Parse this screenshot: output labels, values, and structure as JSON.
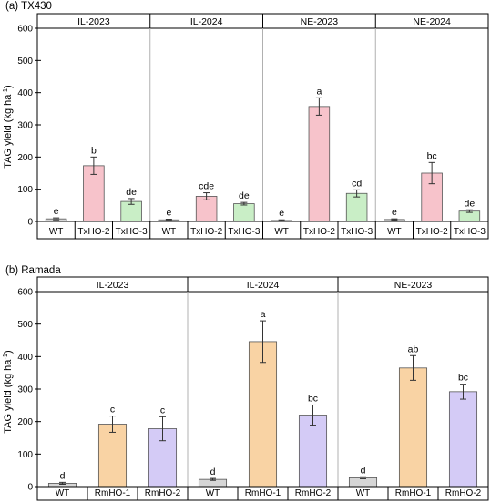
{
  "colors": {
    "WT": "#d6d6d6",
    "TxHO-2": "#f7c3cb",
    "TxHO-3": "#c9eec6",
    "RmHO-1": "#f9d3a4",
    "RmHO-2": "#d4cbf6",
    "axis": "#000000",
    "frame": "#b0b0b0"
  },
  "chart_data": [
    {
      "type": "bar",
      "title": "(a) TX430",
      "ylabel": "TAG yield (kg ha",
      "ylabel_sup": "-1",
      "ylabel_close": ")",
      "ylim": [
        0,
        600
      ],
      "yticks": [
        "0",
        "100",
        "200",
        "300",
        "400",
        "500",
        "600"
      ],
      "grid": false,
      "groups": [
        {
          "name": "IL-2023",
          "categories": [
            "WT",
            "TxHO-2",
            "TxHO-3"
          ],
          "values": [
            8,
            173,
            62
          ],
          "errors": [
            3,
            27,
            9
          ],
          "letters": [
            "e",
            "b",
            "de"
          ]
        },
        {
          "name": "IL-2024",
          "categories": [
            "WT",
            "TxHO-2",
            "TxHO-3"
          ],
          "values": [
            5,
            78,
            55
          ],
          "errors": [
            2,
            11,
            4
          ],
          "letters": [
            "e",
            "cde",
            "de"
          ]
        },
        {
          "name": "NE-2023",
          "categories": [
            "WT",
            "TxHO-2",
            "TxHO-3"
          ],
          "values": [
            3,
            357,
            87
          ],
          "errors": [
            2,
            27,
            11
          ],
          "letters": [
            "e",
            "a",
            "cd"
          ]
        },
        {
          "name": "NE-2024",
          "categories": [
            "WT",
            "TxHO-2",
            "TxHO-3"
          ],
          "values": [
            6,
            150,
            32
          ],
          "errors": [
            2,
            33,
            4
          ],
          "letters": [
            "e",
            "bc",
            "de"
          ]
        }
      ]
    },
    {
      "type": "bar",
      "title": "(b) Ramada",
      "ylabel": "TAG yield (kg ha",
      "ylabel_sup": "-1",
      "ylabel_close": ")",
      "ylim": [
        0,
        600
      ],
      "yticks": [
        "0",
        "100",
        "200",
        "300",
        "400",
        "500",
        "600"
      ],
      "grid": false,
      "groups": [
        {
          "name": "IL-2023",
          "categories": [
            "WT",
            "RmHO-1",
            "RmHO-2"
          ],
          "values": [
            10,
            192,
            178
          ],
          "errors": [
            3,
            25,
            37
          ],
          "letters": [
            "d",
            "c",
            "c"
          ]
        },
        {
          "name": "IL-2024",
          "categories": [
            "WT",
            "RmHO-1",
            "RmHO-2"
          ],
          "values": [
            22,
            446,
            220
          ],
          "errors": [
            3,
            64,
            31
          ],
          "letters": [
            "d",
            "a",
            "bc"
          ]
        },
        {
          "name": "NE-2023",
          "categories": [
            "WT",
            "RmHO-1",
            "RmHO-2"
          ],
          "values": [
            27,
            365,
            292
          ],
          "errors": [
            3,
            38,
            23
          ],
          "letters": [
            "d",
            "ab",
            "bc"
          ]
        }
      ]
    }
  ]
}
